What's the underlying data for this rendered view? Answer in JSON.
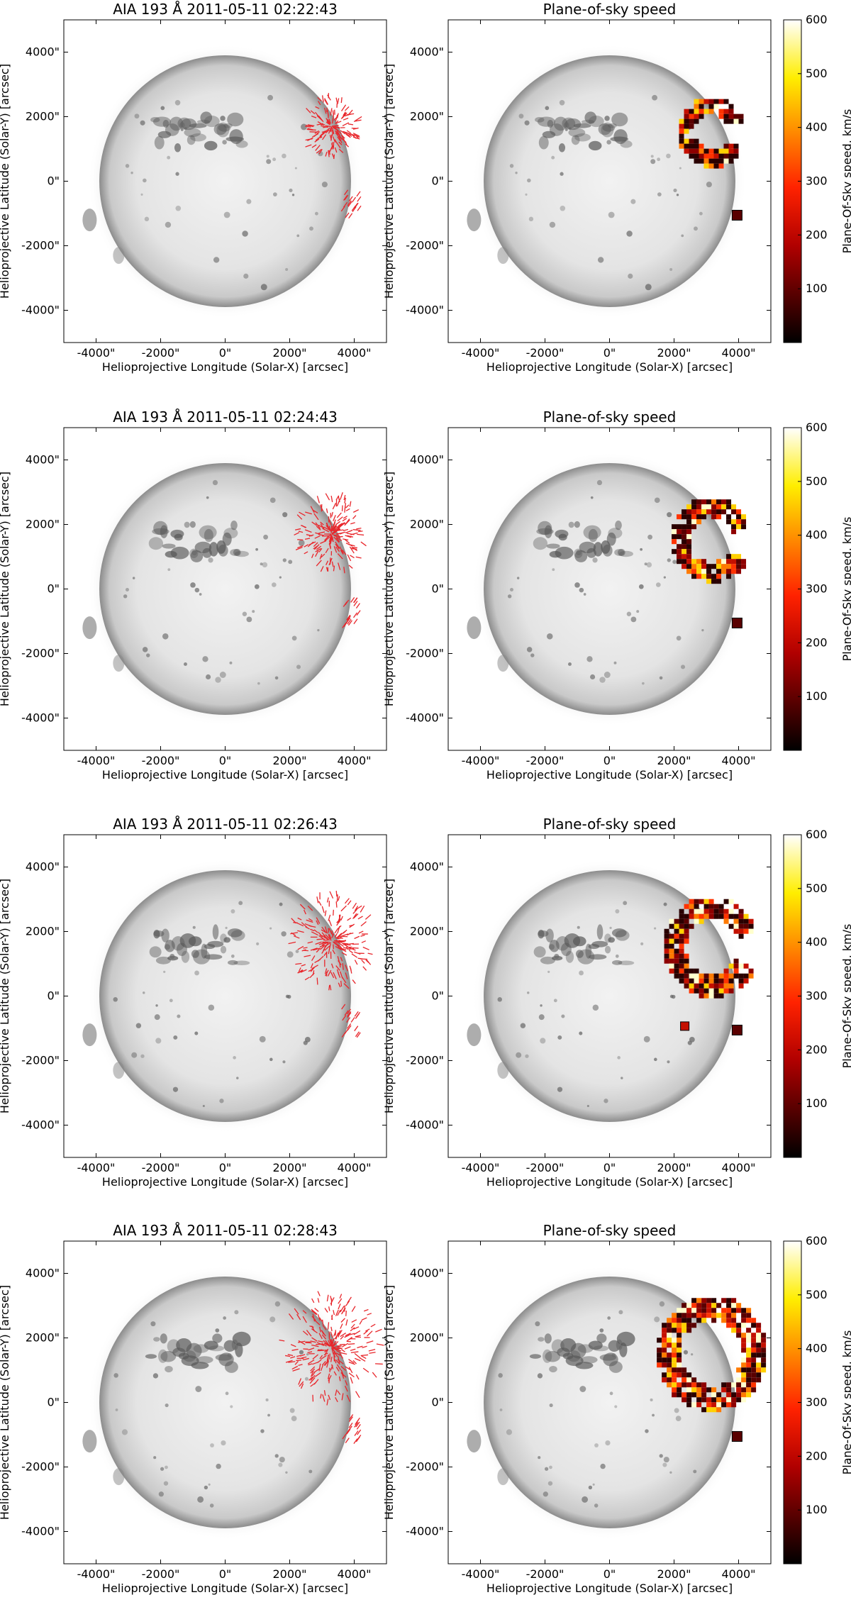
{
  "chart_data": {
    "type": "heatmap",
    "axis_units": "arcsec",
    "xlim": [
      -5000,
      5000
    ],
    "ylim": [
      -5000,
      5000
    ],
    "colorbar": {
      "label": "Plane-Of-Sky speed, km/s",
      "colormap": "hot",
      "range": [
        0,
        600
      ],
      "ticks": [
        "600",
        "500",
        "400",
        "300",
        "200",
        "100"
      ]
    },
    "colors": {
      "vector": "#e8262b",
      "colorbar_low": "#000000",
      "colorbar_mid": "#ff2200",
      "colorbar_high": "#ffffff"
    },
    "panels": [
      {
        "time": "02:22:43",
        "left_title": "AIA 193 Å 2011-05-11 02:22:43",
        "right_title": "Plane-of-sky speed",
        "xlabel": "Helioprojective Longitude (Solar-X) [arcsec]",
        "ylabel": "Helioprojective Latitude (Solar-Y) [arcsec]",
        "xticks": [
          "-4000\"",
          "-2000\"",
          "0\"",
          "2000\"",
          "4000\""
        ],
        "yticks": [
          "4000\"",
          "2000\"",
          "0\"",
          "-2000\"",
          "-4000\""
        ]
      },
      {
        "time": "02:24:43",
        "left_title": "AIA 193 Å 2011-05-11 02:24:43",
        "right_title": "Plane-of-sky speed",
        "xlabel": "Helioprojective Longitude (Solar-X) [arcsec]",
        "ylabel": "Helioprojective Latitude (Solar-Y) [arcsec]",
        "xticks": [
          "-4000\"",
          "-2000\"",
          "0\"",
          "2000\"",
          "4000\""
        ],
        "yticks": [
          "4000\"",
          "2000\"",
          "0\"",
          "-2000\"",
          "-4000\""
        ]
      },
      {
        "time": "02:26:43",
        "left_title": "AIA 193 Å 2011-05-11 02:26:43",
        "right_title": "Plane-of-sky speed",
        "xlabel": "Helioprojective Longitude (Solar-X) [arcsec]",
        "ylabel": "Helioprojective Latitude (Solar-Y) [arcsec]",
        "xticks": [
          "-4000\"",
          "-2000\"",
          "0\"",
          "2000\"",
          "4000\""
        ],
        "yticks": [
          "4000\"",
          "2000\"",
          "0\"",
          "-2000\"",
          "-4000\""
        ]
      },
      {
        "time": "02:28:43",
        "left_title": "AIA 193 Å 2011-05-11 02:28:43",
        "right_title": "Plane-of-sky speed",
        "xlabel": "Helioprojective Longitude (Solar-X) [arcsec]",
        "ylabel": "Helioprojective Latitude (Solar-Y) [arcsec]",
        "xticks": [
          "-4000\"",
          "-2000\"",
          "0\"",
          "2000\"",
          "4000\""
        ],
        "yticks": [
          "4000\"",
          "2000\"",
          "0\"",
          "-2000\"",
          "-4000\""
        ]
      }
    ]
  }
}
